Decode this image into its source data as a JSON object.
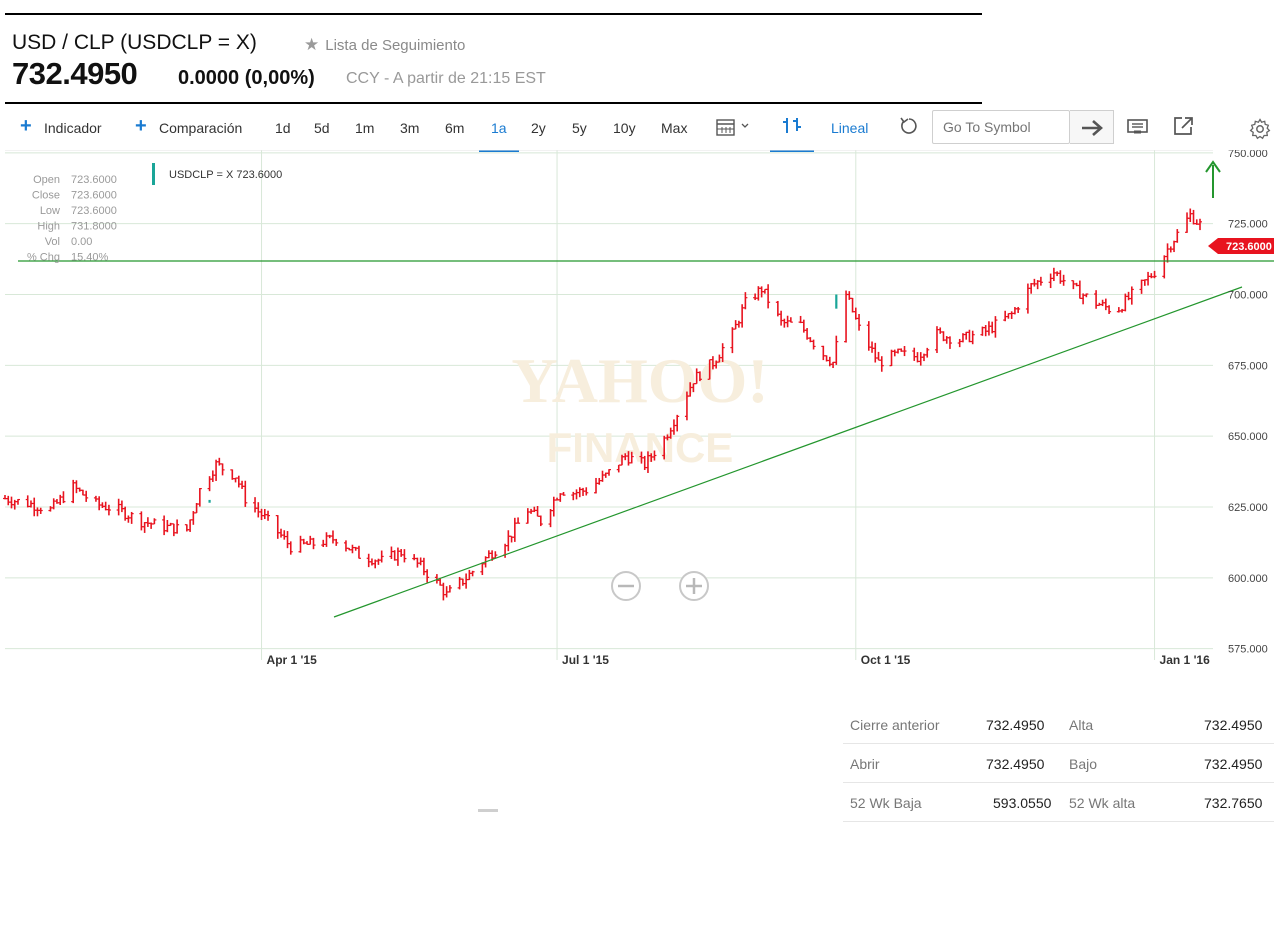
{
  "header": {
    "title": "USD / CLP (USDCLP = X)",
    "watchlist_label": "Lista de Seguimiento",
    "price": "732.4950",
    "change": "0.0000 (0,00%)",
    "info": "CCY - A partir de 21:15 EST"
  },
  "toolbar": {
    "indicator_label": "Indicador",
    "comparison_label": "Comparación",
    "ranges": [
      "1d",
      "5d",
      "1m",
      "3m",
      "6m",
      "1a",
      "2y",
      "5y",
      "10y",
      "Max"
    ],
    "active_range": "1a",
    "chart_type_label": "Lineal",
    "search_placeholder": "Go To Symbol"
  },
  "chart": {
    "legend_label": "USDCLP = X 723.6000",
    "ohlc": [
      {
        "label": "Open",
        "value": "723.6000"
      },
      {
        "label": "Close",
        "value": "723.6000"
      },
      {
        "label": "Low",
        "value": "723.6000"
      },
      {
        "label": "High",
        "value": "731.8000"
      },
      {
        "label": "Vol",
        "value": "0.00"
      },
      {
        "label": "% Chg",
        "value": "15.40%"
      }
    ],
    "last_price_tag": "723.6000",
    "watermark_line1": "YAHOO!",
    "watermark_line2": "FINANCE",
    "zoom_out_icon": "minus-circle-icon",
    "zoom_in_icon": "plus-circle-icon",
    "colors": {
      "bar": "#e8131f",
      "up_bar": "#1aa598",
      "trend": "#24962e",
      "grid": "#d8e8d8",
      "tag": "#e8131f"
    }
  },
  "chart_data": {
    "type": "line",
    "y_ticks": [
      750,
      725,
      700,
      675,
      650,
      625,
      600,
      575
    ],
    "y_tick_labels": [
      "750.000",
      "725.000",
      "700.000",
      "675.000",
      "650.000",
      "625.000",
      "600.000",
      "575.000"
    ],
    "ylim": [
      571,
      751
    ],
    "x_ticks": [
      {
        "date": "2015-04-01",
        "label": "Apr 1 '15"
      },
      {
        "date": "2015-07-01",
        "label": "Jul 1 '15"
      },
      {
        "date": "2015-10-01",
        "label": "Oct 1 '15"
      },
      {
        "date": "2016-01-01",
        "label": "Jan 1 '16"
      }
    ],
    "xlim": [
      "2015-01-12",
      "2016-01-19"
    ],
    "grid": true,
    "series": [
      {
        "values": [
          {
            "date": "2015-01-12",
            "value": 628
          },
          {
            "date": "2015-01-20",
            "value": 626
          },
          {
            "date": "2015-01-26",
            "value": 624
          },
          {
            "date": "2015-02-02",
            "value": 632
          },
          {
            "date": "2015-02-09",
            "value": 626
          },
          {
            "date": "2015-02-16",
            "value": 624
          },
          {
            "date": "2015-02-23",
            "value": 620
          },
          {
            "date": "2015-03-02",
            "value": 618
          },
          {
            "date": "2015-03-09",
            "value": 617
          },
          {
            "date": "2015-03-13",
            "value": 631
          },
          {
            "date": "2015-03-18",
            "value": 640
          },
          {
            "date": "2015-03-24",
            "value": 636
          },
          {
            "date": "2015-03-27",
            "value": 628
          },
          {
            "date": "2015-04-03",
            "value": 620
          },
          {
            "date": "2015-04-10",
            "value": 611
          },
          {
            "date": "2015-04-17",
            "value": 612
          },
          {
            "date": "2015-04-24",
            "value": 614
          },
          {
            "date": "2015-05-01",
            "value": 608
          },
          {
            "date": "2015-05-08",
            "value": 606
          },
          {
            "date": "2015-05-14",
            "value": 609
          },
          {
            "date": "2015-05-20",
            "value": 604
          },
          {
            "date": "2015-05-26",
            "value": 597
          },
          {
            "date": "2015-05-28",
            "value": 594
          },
          {
            "date": "2015-06-03",
            "value": 600
          },
          {
            "date": "2015-06-10",
            "value": 608
          },
          {
            "date": "2015-06-16",
            "value": 614
          },
          {
            "date": "2015-06-22",
            "value": 624
          },
          {
            "date": "2015-06-26",
            "value": 620
          },
          {
            "date": "2015-07-02",
            "value": 631
          },
          {
            "date": "2015-07-06",
            "value": 630
          },
          {
            "date": "2015-07-10",
            "value": 631
          },
          {
            "date": "2015-07-16",
            "value": 636
          },
          {
            "date": "2015-07-22",
            "value": 643
          },
          {
            "date": "2015-07-28",
            "value": 640
          },
          {
            "date": "2015-08-03",
            "value": 649
          },
          {
            "date": "2015-08-07",
            "value": 658
          },
          {
            "date": "2015-08-12",
            "value": 670
          },
          {
            "date": "2015-08-18",
            "value": 676
          },
          {
            "date": "2015-08-24",
            "value": 686
          },
          {
            "date": "2015-08-28",
            "value": 697
          },
          {
            "date": "2015-09-02",
            "value": 702
          },
          {
            "date": "2015-09-08",
            "value": 690
          },
          {
            "date": "2015-09-14",
            "value": 689
          },
          {
            "date": "2015-09-20",
            "value": 680
          },
          {
            "date": "2015-09-24",
            "value": 676
          },
          {
            "date": "2015-09-28",
            "value": 700
          },
          {
            "date": "2015-10-02",
            "value": 688
          },
          {
            "date": "2015-10-08",
            "value": 676
          },
          {
            "date": "2015-10-14",
            "value": 679
          },
          {
            "date": "2015-10-20",
            "value": 678
          },
          {
            "date": "2015-10-26",
            "value": 686
          },
          {
            "date": "2015-11-02",
            "value": 684
          },
          {
            "date": "2015-11-10",
            "value": 687
          },
          {
            "date": "2015-11-18",
            "value": 693
          },
          {
            "date": "2015-11-24",
            "value": 703
          },
          {
            "date": "2015-12-01",
            "value": 708
          },
          {
            "date": "2015-12-07",
            "value": 702
          },
          {
            "date": "2015-12-14",
            "value": 697
          },
          {
            "date": "2015-12-20",
            "value": 694
          },
          {
            "date": "2015-12-26",
            "value": 701
          },
          {
            "date": "2016-01-01",
            "value": 708
          },
          {
            "date": "2016-01-06",
            "value": 718
          },
          {
            "date": "2016-01-12",
            "value": 728
          },
          {
            "date": "2016-01-16",
            "value": 723.6
          }
        ]
      }
    ]
  },
  "stats": {
    "rows": [
      {
        "label1": "Cierre anterior",
        "value1": "732.4950",
        "label2": "Alta",
        "value2": "732.4950"
      },
      {
        "label1": "Abrir",
        "value1": "732.4950",
        "label2": "Bajo",
        "value2": "732.4950"
      },
      {
        "label1": "52 Wk Baja",
        "value1": "593.0550",
        "label2": "52 Wk alta",
        "value2": "732.7650"
      }
    ]
  }
}
